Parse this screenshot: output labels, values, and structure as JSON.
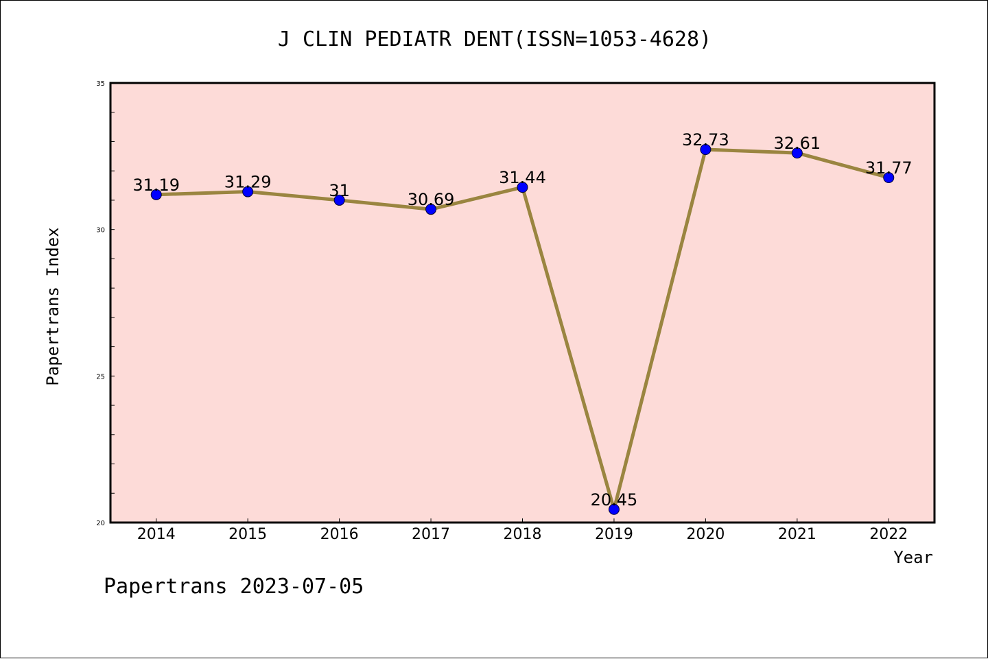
{
  "chart_data": {
    "type": "line",
    "title": "J CLIN PEDIATR DENT(ISSN=1053-4628)",
    "xlabel": "Year",
    "ylabel": "Papertrans Index",
    "categories": [
      "2014",
      "2015",
      "2016",
      "2017",
      "2018",
      "2019",
      "2020",
      "2021",
      "2022"
    ],
    "values": [
      31.19,
      31.29,
      31,
      30.69,
      31.44,
      20.45,
      32.73,
      32.61,
      31.77
    ],
    "data_labels": [
      "31.19",
      "31.29",
      "31",
      "30.69",
      "31.44",
      "20.45",
      "32.73",
      "32.61",
      "31.77"
    ],
    "ylim": [
      20,
      35
    ],
    "y_ticks": [
      "20",
      "25",
      "30",
      "35"
    ],
    "grid": false,
    "colors": {
      "plot_background": "#fddbd8",
      "line": "#9a8540",
      "marker": "#0000ff"
    }
  },
  "footer": {
    "text": "Papertrans 2023-07-05"
  }
}
